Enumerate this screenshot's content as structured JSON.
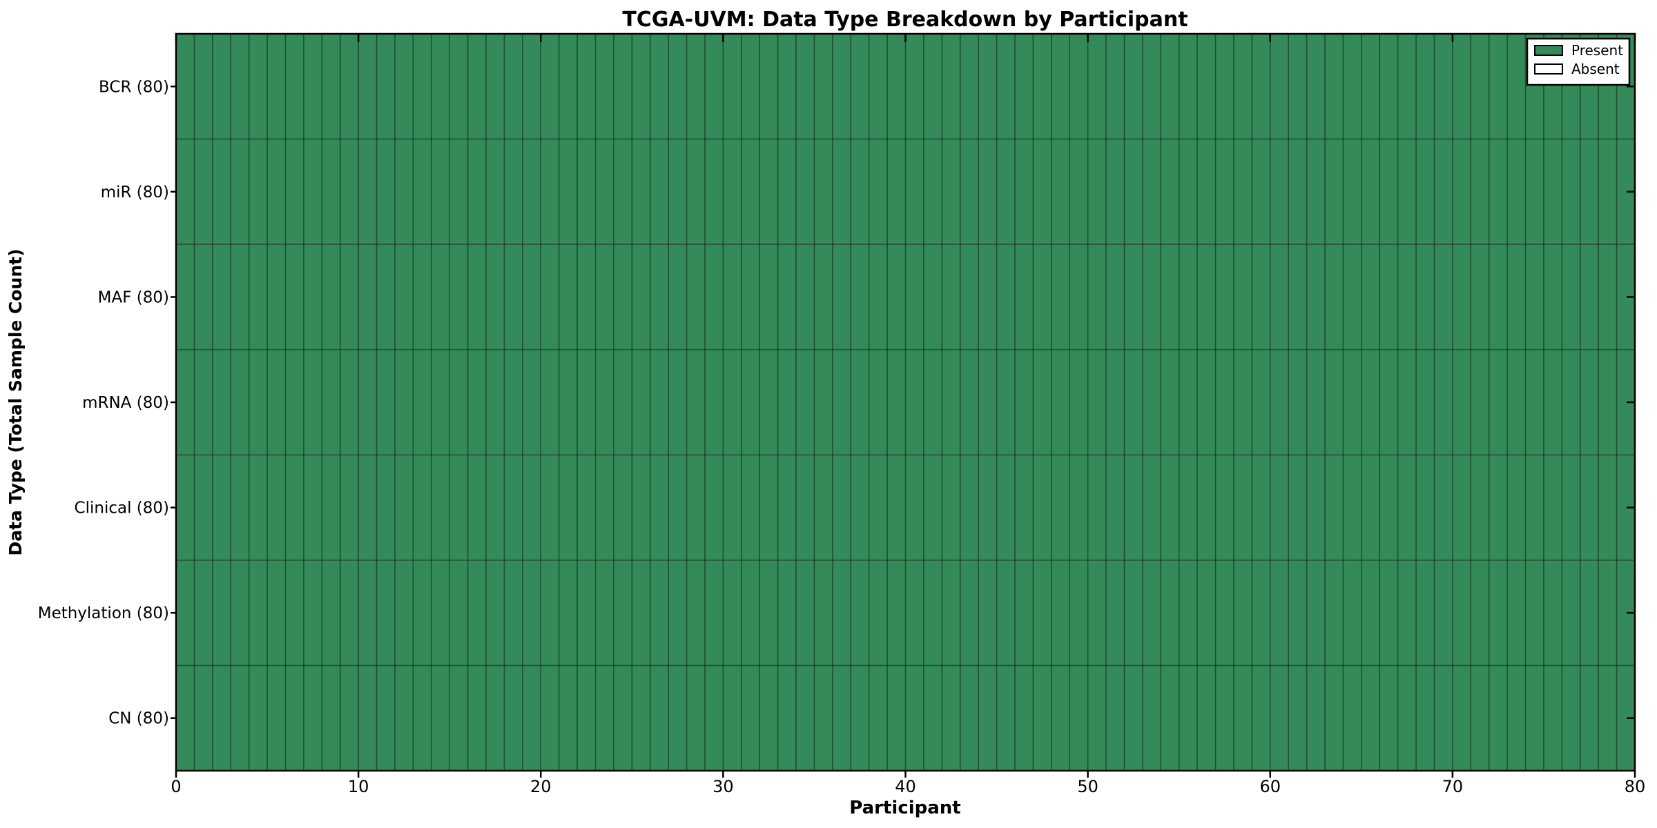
{
  "chart_data": {
    "type": "heatmap",
    "title": "TCGA-UVM: Data Type Breakdown by Participant",
    "xlabel": "Participant",
    "ylabel": "Data Type (Total Sample Count)",
    "n_participants": 80,
    "x_range": [
      0,
      80
    ],
    "x_ticks": [
      0,
      10,
      20,
      30,
      40,
      50,
      60,
      70,
      80
    ],
    "grid": true,
    "all_cells_present": true,
    "rows": [
      {
        "label": "BCR (80)",
        "data_type": "BCR",
        "total_samples": 80,
        "present_participants": 80,
        "absent_participants": 0
      },
      {
        "label": "miR (80)",
        "data_type": "miR",
        "total_samples": 80,
        "present_participants": 80,
        "absent_participants": 0
      },
      {
        "label": "MAF (80)",
        "data_type": "MAF",
        "total_samples": 80,
        "present_participants": 80,
        "absent_participants": 0
      },
      {
        "label": "mRNA (80)",
        "data_type": "mRNA",
        "total_samples": 80,
        "present_participants": 80,
        "absent_participants": 0
      },
      {
        "label": "Clinical (80)",
        "data_type": "Clinical",
        "total_samples": 80,
        "present_participants": 80,
        "absent_participants": 0
      },
      {
        "label": "Methylation (80)",
        "data_type": "Methylation",
        "total_samples": 80,
        "present_participants": 80,
        "absent_participants": 0
      },
      {
        "label": "CN (80)",
        "data_type": "CN",
        "total_samples": 80,
        "present_participants": 80,
        "absent_participants": 0
      }
    ],
    "legend": {
      "position": "upper right",
      "items": [
        {
          "label": "Present",
          "color": "#348a58",
          "border": "#000000"
        },
        {
          "label": "Absent",
          "color": "#ffffff",
          "border": "#000000"
        }
      ]
    },
    "colors": {
      "present": "#348a58",
      "absent": "#ffffff",
      "cell_edge": "rgba(0,0,0,0.42)",
      "spine": "#000000",
      "background": "#ffffff"
    }
  }
}
